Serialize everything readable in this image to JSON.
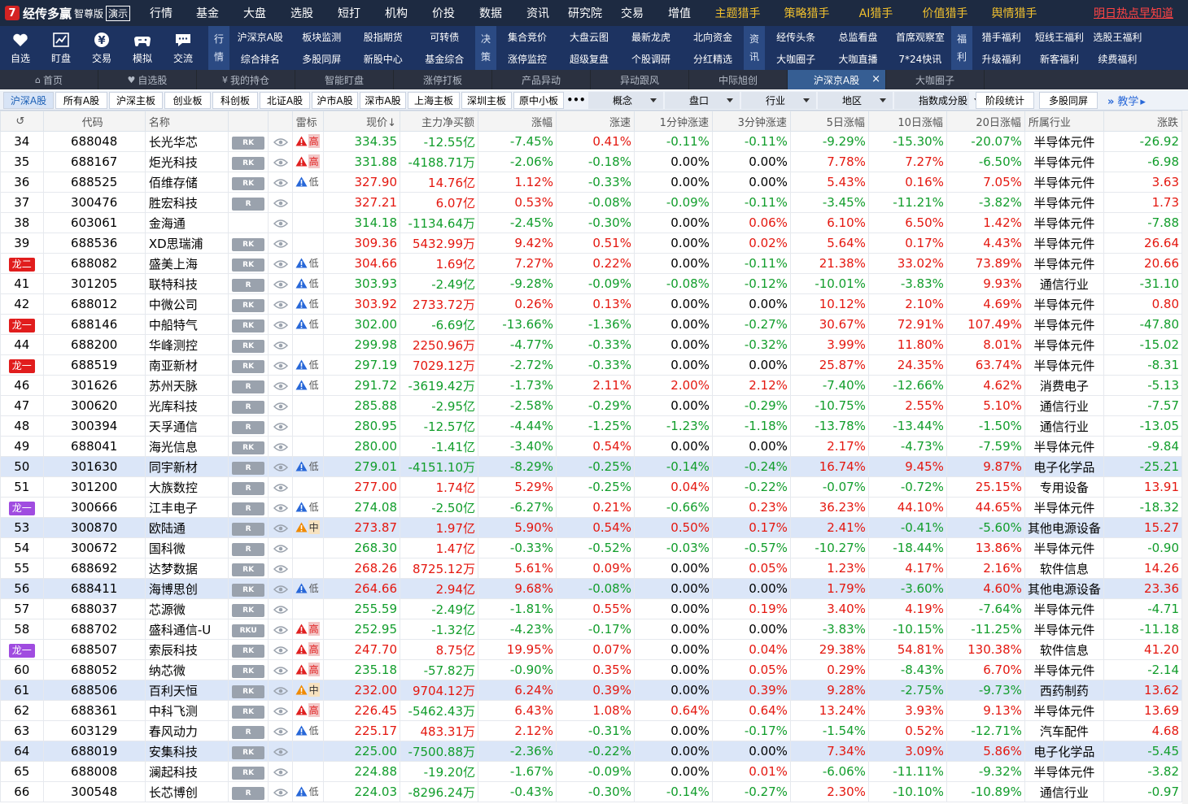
{
  "app": {
    "name": "经传多赢",
    "edition": "智尊版",
    "demo": "演示"
  },
  "top_menu": [
    {
      "label": "行情",
      "w": 56,
      "y": false
    },
    {
      "label": "基金",
      "w": 58,
      "y": false
    },
    {
      "label": "大盘",
      "w": 58,
      "y": false
    },
    {
      "label": "选股",
      "w": 58,
      "y": false
    },
    {
      "label": "短打",
      "w": 58,
      "y": false
    },
    {
      "label": "机构",
      "w": 58,
      "y": false
    },
    {
      "label": "价投",
      "w": 58,
      "y": false
    },
    {
      "label": "数据",
      "w": 58,
      "y": false
    },
    {
      "label": "资讯",
      "w": 58,
      "y": false
    },
    {
      "label": "研究院",
      "w": 58,
      "y": false
    },
    {
      "label": "交易",
      "w": 58,
      "y": false
    },
    {
      "label": "增值",
      "w": 58,
      "y": false
    },
    {
      "label": "主题猎手",
      "w": 85,
      "y": true
    },
    {
      "label": "策略猎手",
      "w": 85,
      "y": true
    },
    {
      "label": "AI猎手",
      "w": 85,
      "y": true
    },
    {
      "label": "价值猎手",
      "w": 85,
      "y": true
    },
    {
      "label": "舆情猎手",
      "w": 85,
      "y": true
    }
  ],
  "hot_link": "明日热点早知道",
  "toolbar": {
    "buttons": [
      {
        "label": "自选",
        "icon": "heart-icon"
      },
      {
        "label": "盯盘",
        "icon": "chart-icon"
      },
      {
        "label": "交易",
        "icon": "yen-icon"
      },
      {
        "label": "模拟",
        "icon": "gamepad-icon"
      },
      {
        "label": "交流",
        "icon": "chat-icon"
      }
    ],
    "groups": [
      {
        "label": [
          "行",
          "情"
        ],
        "cols": 4,
        "items": [
          "沪深京A股",
          "板块监测",
          "股指期货",
          "可转债",
          "综合排名",
          "多股同屏",
          "新股中心",
          "基金综合"
        ]
      },
      {
        "label": [
          "决",
          "策"
        ],
        "cols": 4,
        "items": [
          "集合竞价",
          "大盘云图",
          "最新龙虎",
          "北向资金",
          "涨停监控",
          "超级复盘",
          "个股调研",
          "分红精选"
        ]
      },
      {
        "label": [
          "资",
          "讯"
        ],
        "cols": 3,
        "items": [
          "经传头条",
          "总监看盘",
          "首席观察室",
          "大咖圈子",
          "大咖直播",
          "7*24快讯"
        ]
      },
      {
        "label": [
          "福",
          "利"
        ],
        "cols": 3,
        "items": [
          "猎手福利",
          "短线王福利",
          "选股王福利",
          "升级福利",
          "新客福利",
          "续费福利"
        ]
      }
    ]
  },
  "tabs": [
    {
      "label": "首页",
      "icon": "home-icon"
    },
    {
      "label": "自选股",
      "icon": "heart-icon"
    },
    {
      "label": "我的持仓",
      "icon": "yen-icon"
    },
    {
      "label": "智能盯盘",
      "icon": ""
    },
    {
      "label": "涨停打板",
      "icon": ""
    },
    {
      "label": "产品异动",
      "icon": ""
    },
    {
      "label": "异动跟风",
      "icon": ""
    },
    {
      "label": "中际旭创",
      "icon": ""
    },
    {
      "label": "沪深京A股",
      "icon": "",
      "active": true,
      "closable": true
    },
    {
      "label": "大咖圈子",
      "icon": ""
    }
  ],
  "filters": {
    "buttons": [
      "沪深A股",
      "所有A股",
      "沪深主板",
      "创业板",
      "科创板",
      "北证A股",
      "沪市A股",
      "深市A股",
      "上海主板",
      "深圳主板",
      "原中小板"
    ],
    "more": "•••",
    "dropdowns": [
      "概念",
      "盘口",
      "行业",
      "地区",
      "指数成分股"
    ],
    "actions": [
      "阶段统计",
      "多股同屏"
    ],
    "teach": "教学"
  },
  "table": {
    "headers": [
      "",
      "代码",
      "名称",
      "",
      "",
      "雷标",
      "现价↓",
      "主力净买额",
      "涨幅",
      "涨速",
      "1分钟涨速",
      "3分钟涨速",
      "5日涨幅",
      "10日涨幅",
      "20日涨幅",
      "所属行业",
      "涨跌"
    ],
    "rows": [
      {
        "n": "34",
        "code": "688048",
        "name": "长光华芯",
        "tag": "RK",
        "risk": "高",
        "price": "334.35",
        "net": "-12.55亿",
        "chg": "-7.45%",
        "spd": "0.41%",
        "m1": "-0.11%",
        "m3": "-0.11%",
        "d5": "-9.29%",
        "d10": "-15.30%",
        "d20": "-20.07%",
        "ind": "半导体元件",
        "diff": "-26.92"
      },
      {
        "n": "35",
        "code": "688167",
        "name": "炬光科技",
        "tag": "RK",
        "risk": "高",
        "price": "331.88",
        "net": "-4188.71万",
        "chg": "-2.06%",
        "spd": "-0.18%",
        "m1": "0.00%",
        "m3": "0.00%",
        "d5": "7.78%",
        "d10": "7.27%",
        "d20": "-6.50%",
        "ind": "半导体元件",
        "diff": "-6.98"
      },
      {
        "n": "36",
        "code": "688525",
        "name": "佰维存储",
        "tag": "RK",
        "risk": "低",
        "price": "327.90",
        "net": "14.76亿",
        "chg": "1.12%",
        "spd": "-0.33%",
        "m1": "0.00%",
        "m3": "0.00%",
        "d5": "5.43%",
        "d10": "0.16%",
        "d20": "7.05%",
        "ind": "半导体元件",
        "diff": "3.63"
      },
      {
        "n": "37",
        "code": "300476",
        "name": "胜宏科技",
        "tag": "R",
        "risk": "",
        "price": "327.21",
        "net": "6.07亿",
        "chg": "0.53%",
        "spd": "-0.08%",
        "m1": "-0.09%",
        "m3": "-0.11%",
        "d5": "-3.45%",
        "d10": "-11.21%",
        "d20": "-3.82%",
        "ind": "半导体元件",
        "diff": "1.73"
      },
      {
        "n": "38",
        "code": "603061",
        "name": "金海通",
        "tag": "",
        "risk": "",
        "price": "314.18",
        "net": "-1134.64万",
        "chg": "-2.45%",
        "spd": "-0.30%",
        "m1": "0.00%",
        "m3": "0.06%",
        "d5": "6.10%",
        "d10": "6.50%",
        "d20": "1.42%",
        "ind": "半导体元件",
        "diff": "-7.88"
      },
      {
        "n": "39",
        "code": "688536",
        "name": "XD思瑞浦",
        "tag": "RK",
        "risk": "",
        "price": "309.36",
        "net": "5432.99万",
        "chg": "9.42%",
        "spd": "0.51%",
        "m1": "0.00%",
        "m3": "0.02%",
        "d5": "5.64%",
        "d10": "0.17%",
        "d20": "4.43%",
        "ind": "半导体元件",
        "diff": "26.64"
      },
      {
        "n": "40",
        "dragon": "龙二",
        "dc": "#e11d1d",
        "code": "688082",
        "name": "盛美上海",
        "tag": "RK",
        "risk": "低",
        "price": "304.66",
        "net": "1.69亿",
        "chg": "7.27%",
        "spd": "0.22%",
        "m1": "0.00%",
        "m3": "-0.11%",
        "d5": "21.38%",
        "d10": "33.02%",
        "d20": "73.89%",
        "ind": "半导体元件",
        "diff": "20.66"
      },
      {
        "n": "41",
        "code": "301205",
        "name": "联特科技",
        "tag": "R",
        "risk": "低",
        "price": "303.93",
        "net": "-2.49亿",
        "chg": "-9.28%",
        "spd": "-0.09%",
        "m1": "-0.08%",
        "m3": "-0.12%",
        "d5": "-10.01%",
        "d10": "-3.83%",
        "d20": "9.93%",
        "ind": "通信行业",
        "diff": "-31.10"
      },
      {
        "n": "42",
        "code": "688012",
        "name": "中微公司",
        "tag": "RK",
        "risk": "低",
        "price": "303.92",
        "net": "2733.72万",
        "chg": "0.26%",
        "spd": "0.13%",
        "m1": "0.00%",
        "m3": "0.00%",
        "d5": "10.12%",
        "d10": "2.10%",
        "d20": "4.69%",
        "ind": "半导体元件",
        "diff": "0.80"
      },
      {
        "n": "43",
        "dragon": "龙一",
        "dc": "#e11d1d",
        "code": "688146",
        "name": "中船特气",
        "tag": "RK",
        "risk": "低",
        "price": "302.00",
        "net": "-6.69亿",
        "chg": "-13.66%",
        "spd": "-1.36%",
        "m1": "0.00%",
        "m3": "-0.27%",
        "d5": "30.67%",
        "d10": "72.91%",
        "d20": "107.49%",
        "ind": "半导体元件",
        "diff": "-47.80"
      },
      {
        "n": "44",
        "code": "688200",
        "name": "华峰测控",
        "tag": "RK",
        "risk": "",
        "price": "299.98",
        "net": "2250.96万",
        "chg": "-4.77%",
        "spd": "-0.33%",
        "m1": "0.00%",
        "m3": "-0.32%",
        "d5": "3.99%",
        "d10": "11.80%",
        "d20": "8.01%",
        "ind": "半导体元件",
        "diff": "-15.02"
      },
      {
        "n": "45",
        "dragon": "龙一",
        "dc": "#e11d1d",
        "code": "688519",
        "name": "南亚新材",
        "tag": "RK",
        "risk": "低",
        "price": "297.19",
        "net": "7029.12万",
        "chg": "-2.72%",
        "spd": "-0.33%",
        "m1": "0.00%",
        "m3": "0.00%",
        "d5": "25.87%",
        "d10": "24.35%",
        "d20": "63.74%",
        "ind": "半导体元件",
        "diff": "-8.31"
      },
      {
        "n": "46",
        "code": "301626",
        "name": "苏州天脉",
        "tag": "R",
        "risk": "低",
        "price": "291.72",
        "net": "-3619.42万",
        "chg": "-1.73%",
        "spd": "2.11%",
        "m1": "2.00%",
        "m3": "2.12%",
        "d5": "-7.40%",
        "d10": "-12.66%",
        "d20": "4.62%",
        "ind": "消费电子",
        "diff": "-5.13"
      },
      {
        "n": "47",
        "code": "300620",
        "name": "光库科技",
        "tag": "R",
        "risk": "",
        "price": "285.88",
        "net": "-2.95亿",
        "chg": "-2.58%",
        "spd": "-0.29%",
        "m1": "0.00%",
        "m3": "-0.29%",
        "d5": "-10.75%",
        "d10": "2.55%",
        "d20": "5.10%",
        "ind": "通信行业",
        "diff": "-7.57"
      },
      {
        "n": "48",
        "code": "300394",
        "name": "天孚通信",
        "tag": "R",
        "risk": "",
        "price": "280.95",
        "net": "-12.57亿",
        "chg": "-4.44%",
        "spd": "-1.25%",
        "m1": "-1.23%",
        "m3": "-1.18%",
        "d5": "-13.78%",
        "d10": "-13.44%",
        "d20": "-1.50%",
        "ind": "通信行业",
        "diff": "-13.05"
      },
      {
        "n": "49",
        "code": "688041",
        "name": "海光信息",
        "tag": "RK",
        "risk": "",
        "price": "280.00",
        "net": "-1.41亿",
        "chg": "-3.40%",
        "spd": "0.54%",
        "m1": "0.00%",
        "m3": "0.00%",
        "d5": "2.17%",
        "d10": "-4.73%",
        "d20": "-7.59%",
        "ind": "半导体元件",
        "diff": "-9.84"
      },
      {
        "n": "50",
        "hl": true,
        "code": "301630",
        "name": "同宇新材",
        "tag": "R",
        "risk": "低",
        "price": "279.01",
        "net": "-4151.10万",
        "chg": "-8.29%",
        "spd": "-0.25%",
        "m1": "-0.14%",
        "m3": "-0.24%",
        "d5": "16.74%",
        "d10": "9.45%",
        "d20": "9.87%",
        "ind": "电子化学品",
        "diff": "-25.21"
      },
      {
        "n": "51",
        "code": "301200",
        "name": "大族数控",
        "tag": "R",
        "risk": "",
        "price": "277.00",
        "net": "1.74亿",
        "chg": "5.29%",
        "spd": "-0.25%",
        "m1": "0.04%",
        "m3": "-0.22%",
        "d5": "-0.07%",
        "d10": "-0.72%",
        "d20": "25.15%",
        "ind": "专用设备",
        "diff": "13.91"
      },
      {
        "n": "52",
        "dragon": "龙一",
        "dc": "#a04ce0",
        "code": "300666",
        "name": "江丰电子",
        "tag": "R",
        "risk": "低",
        "price": "274.08",
        "net": "-2.50亿",
        "chg": "-6.27%",
        "spd": "0.21%",
        "m1": "-0.66%",
        "m3": "0.23%",
        "d5": "36.23%",
        "d10": "44.10%",
        "d20": "44.65%",
        "ind": "半导体元件",
        "diff": "-18.32"
      },
      {
        "n": "53",
        "hl": true,
        "code": "300870",
        "name": "欧陆通",
        "tag": "R",
        "risk": "中",
        "price": "273.87",
        "net": "1.97亿",
        "chg": "5.90%",
        "spd": "0.54%",
        "m1": "0.50%",
        "m3": "0.17%",
        "d5": "2.41%",
        "d10": "-0.41%",
        "d20": "-5.60%",
        "ind": "其他电源设备",
        "diff": "15.27"
      },
      {
        "n": "54",
        "code": "300672",
        "name": "国科微",
        "tag": "R",
        "risk": "",
        "price": "268.30",
        "net": "1.47亿",
        "chg": "-0.33%",
        "spd": "-0.52%",
        "m1": "-0.03%",
        "m3": "-0.57%",
        "d5": "-10.27%",
        "d10": "-18.44%",
        "d20": "13.86%",
        "ind": "半导体元件",
        "diff": "-0.90"
      },
      {
        "n": "55",
        "code": "688692",
        "name": "达梦数据",
        "tag": "RK",
        "risk": "",
        "price": "268.26",
        "net": "8725.12万",
        "chg": "5.61%",
        "spd": "0.09%",
        "m1": "0.00%",
        "m3": "0.05%",
        "d5": "1.23%",
        "d10": "4.17%",
        "d20": "2.16%",
        "ind": "软件信息",
        "diff": "14.26"
      },
      {
        "n": "56",
        "hl": true,
        "code": "688411",
        "name": "海博思创",
        "tag": "RK",
        "risk": "低",
        "price": "264.66",
        "net": "2.94亿",
        "chg": "9.68%",
        "spd": "-0.08%",
        "m1": "0.00%",
        "m3": "0.00%",
        "d5": "1.79%",
        "d10": "-3.60%",
        "d20": "4.60%",
        "ind": "其他电源设备",
        "diff": "23.36"
      },
      {
        "n": "57",
        "code": "688037",
        "name": "芯源微",
        "tag": "RK",
        "risk": "",
        "price": "255.59",
        "net": "-2.49亿",
        "chg": "-1.81%",
        "spd": "0.55%",
        "m1": "0.00%",
        "m3": "0.19%",
        "d5": "3.40%",
        "d10": "4.19%",
        "d20": "-7.64%",
        "ind": "半导体元件",
        "diff": "-4.71"
      },
      {
        "n": "58",
        "code": "688702",
        "name": "盛科通信-U",
        "tag": "RKU",
        "risk": "高",
        "price": "252.95",
        "net": "-1.32亿",
        "chg": "-4.23%",
        "spd": "-0.17%",
        "m1": "0.00%",
        "m3": "0.00%",
        "d5": "-3.83%",
        "d10": "-10.15%",
        "d20": "-11.25%",
        "ind": "半导体元件",
        "diff": "-11.18"
      },
      {
        "n": "59",
        "dragon": "龙一",
        "dc": "#a04ce0",
        "code": "688507",
        "name": "索辰科技",
        "tag": "RK",
        "risk": "高",
        "price": "247.70",
        "net": "8.75亿",
        "chg": "19.95%",
        "spd": "0.07%",
        "m1": "0.00%",
        "m3": "0.04%",
        "d5": "29.38%",
        "d10": "54.81%",
        "d20": "130.38%",
        "ind": "软件信息",
        "diff": "41.20"
      },
      {
        "n": "60",
        "code": "688052",
        "name": "纳芯微",
        "tag": "RK",
        "risk": "高",
        "price": "235.18",
        "net": "-57.82万",
        "chg": "-0.90%",
        "spd": "0.35%",
        "m1": "0.00%",
        "m3": "0.05%",
        "d5": "0.29%",
        "d10": "-8.43%",
        "d20": "6.70%",
        "ind": "半导体元件",
        "diff": "-2.14"
      },
      {
        "n": "61",
        "hl": true,
        "code": "688506",
        "name": "百利天恒",
        "tag": "RK",
        "risk": "中",
        "price": "232.00",
        "net": "9704.12万",
        "chg": "6.24%",
        "spd": "0.39%",
        "m1": "0.00%",
        "m3": "0.39%",
        "d5": "9.28%",
        "d10": "-2.75%",
        "d20": "-9.73%",
        "ind": "西药制药",
        "diff": "13.62"
      },
      {
        "n": "62",
        "code": "688361",
        "name": "中科飞测",
        "tag": "RK",
        "risk": "高",
        "price": "226.45",
        "net": "-5462.43万",
        "chg": "6.43%",
        "spd": "1.08%",
        "m1": "0.64%",
        "m3": "0.64%",
        "d5": "13.24%",
        "d10": "3.93%",
        "d20": "9.13%",
        "ind": "半导体元件",
        "diff": "13.69"
      },
      {
        "n": "63",
        "code": "603129",
        "name": "春风动力",
        "tag": "R",
        "risk": "低",
        "price": "225.17",
        "net": "483.31万",
        "chg": "2.12%",
        "spd": "-0.31%",
        "m1": "0.00%",
        "m3": "-0.17%",
        "d5": "-1.54%",
        "d10": "0.52%",
        "d20": "-12.71%",
        "ind": "汽车配件",
        "diff": "4.68"
      },
      {
        "n": "64",
        "hl": true,
        "code": "688019",
        "name": "安集科技",
        "tag": "RK",
        "risk": "",
        "price": "225.00",
        "net": "-7500.88万",
        "chg": "-2.36%",
        "spd": "-0.22%",
        "m1": "0.00%",
        "m3": "0.00%",
        "d5": "7.34%",
        "d10": "3.09%",
        "d20": "5.86%",
        "ind": "电子化学品",
        "diff": "-5.45"
      },
      {
        "n": "65",
        "code": "688008",
        "name": "澜起科技",
        "tag": "RK",
        "risk": "",
        "price": "224.88",
        "net": "-19.20亿",
        "chg": "-1.67%",
        "spd": "-0.09%",
        "m1": "0.00%",
        "m3": "0.01%",
        "d5": "-6.06%",
        "d10": "-11.11%",
        "d20": "-9.32%",
        "ind": "半导体元件",
        "diff": "-3.82"
      },
      {
        "n": "66",
        "code": "300548",
        "name": "长芯博创",
        "tag": "R",
        "risk": "低",
        "price": "224.03",
        "net": "-8296.24万",
        "chg": "-0.43%",
        "spd": "-0.30%",
        "m1": "-0.14%",
        "m3": "-0.27%",
        "d5": "2.30%",
        "d10": "-10.10%",
        "d20": "-10.89%",
        "ind": "通信行业",
        "diff": "-0.97"
      }
    ]
  },
  "colors": {
    "up": "#e4170f",
    "down": "#119d2b",
    "risk_high": "#e02020",
    "risk_low": "#2767d8",
    "risk_mid": "#f08a00"
  }
}
